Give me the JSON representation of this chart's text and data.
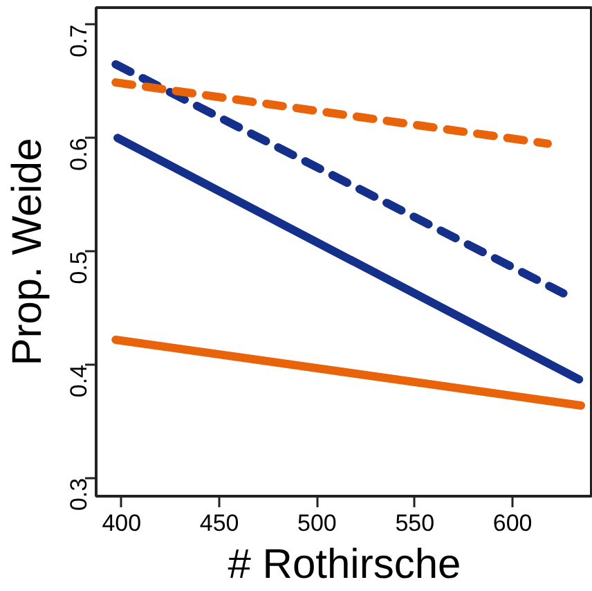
{
  "chart_data": {
    "type": "line",
    "xlabel": "# Rothirsche",
    "ylabel": "Prop. Weide",
    "xlim": [
      387,
      641
    ],
    "ylim": [
      0.284,
      0.715
    ],
    "xticks": [
      400,
      450,
      500,
      550,
      600
    ],
    "yticks": [
      0.3,
      0.4,
      0.5,
      0.6,
      0.7
    ],
    "grid": false,
    "marker": "none",
    "series": [
      {
        "color": "#14308a",
        "x": [
          398,
          634
        ],
        "values": [
          0.6,
          0.387
        ],
        "line_style": "solid"
      },
      {
        "color": "#14308a",
        "x": [
          397,
          626
        ],
        "values": [
          0.665,
          0.463
        ],
        "line_style": "dashed"
      },
      {
        "color": "#e8630a",
        "x": [
          397,
          618
        ],
        "values": [
          0.649,
          0.595
        ],
        "line_style": "dashed"
      },
      {
        "color": "#e8630a",
        "x": [
          397,
          635
        ],
        "values": [
          0.422,
          0.364
        ],
        "line_style": "solid"
      }
    ]
  }
}
